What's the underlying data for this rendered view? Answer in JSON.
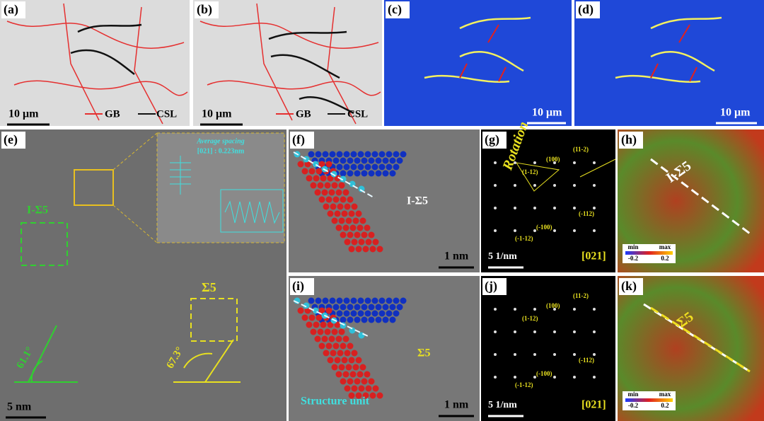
{
  "panels": {
    "a": {
      "label": "(a)",
      "scale_bar": "10 μm",
      "legend": [
        "GB",
        "CSL"
      ]
    },
    "b": {
      "label": "(b)",
      "scale_bar": "10 μm",
      "legend": [
        "GB",
        "CSL"
      ]
    },
    "c": {
      "label": "(c)",
      "scale_bar": "10 μm"
    },
    "d": {
      "label": "(d)",
      "scale_bar": "10 μm"
    },
    "e": {
      "label": "(e)",
      "scale_bar": "5 nm",
      "inset_title": "Average spacing",
      "inset_value": "[021] : 0.223nm",
      "boundary_1": "I-Σ5",
      "boundary_2": "Σ5",
      "angle_1": "61.1°",
      "angle_2": "67.3°"
    },
    "f": {
      "label": "(f)",
      "scale_bar": "1 nm",
      "boundary": "I-Σ5"
    },
    "g": {
      "label": "(g)",
      "scale_bar": "5 1/nm",
      "zone_axis": "[021]",
      "rotation": "Rotation",
      "spots": [
        "(11-2)",
        "(100)",
        "(1-12)",
        "(-112)",
        "(-100)",
        "(-1-12)"
      ]
    },
    "h": {
      "label": "(h)",
      "boundary": "I-Σ5",
      "colorbar": [
        "min",
        "max",
        "-0.2",
        "0.2"
      ]
    },
    "i": {
      "label": "(i)",
      "scale_bar": "1 nm",
      "boundary": "Σ5",
      "annotation": "Structure unit"
    },
    "j": {
      "label": "(j)",
      "scale_bar": "5 1/nm",
      "zone_axis": "[021]",
      "spots": [
        "(11-2)",
        "(100)",
        "(1-12)",
        "(-112)",
        "(-100)",
        "(-1-12)"
      ]
    },
    "k": {
      "label": "(k)",
      "boundary": "Σ5",
      "colorbar": [
        "min",
        "max",
        "-0.2",
        "0.2"
      ]
    }
  }
}
